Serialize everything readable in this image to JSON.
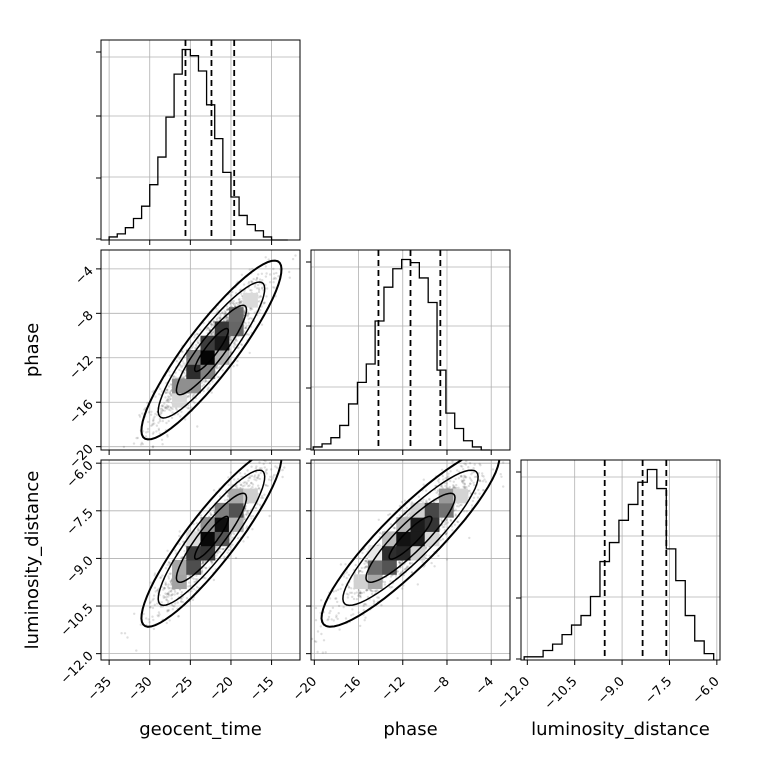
{
  "chart_data": {
    "type": "corner",
    "parameters": [
      "geocent_time",
      "phase",
      "luminosity_distance"
    ],
    "axis_labels": {
      "x": [
        "geocent_time",
        "phase",
        "luminosity_distance"
      ],
      "y": [
        "phase",
        "luminosity_distance"
      ]
    },
    "ranges": {
      "geocent_time": [
        -36.0,
        -11.5
      ],
      "phase": [
        -20.3,
        -2.3
      ],
      "luminosity_distance": [
        -12.2,
        -5.9
      ]
    },
    "ticks": {
      "geocent_time": [
        "-35",
        "-30",
        "-25",
        "-20",
        "-15"
      ],
      "phase": [
        "-20",
        "-16",
        "-12",
        "-8",
        "-4"
      ],
      "luminosity_distance": [
        "-12.0",
        "-10.5",
        "-9.0",
        "-7.5",
        "-6.0"
      ]
    },
    "tick_values": {
      "geocent_time": [
        -35,
        -30,
        -25,
        -20,
        -15
      ],
      "phase": [
        -20,
        -16,
        -12,
        -8,
        -4
      ],
      "luminosity_distance": [
        -12.0,
        -10.5,
        -9.0,
        -7.5,
        -6.0
      ]
    },
    "quantiles": {
      "geocent_time": [
        -25.6,
        -22.4,
        -19.6
      ],
      "phase": [
        -14.2,
        -11.3,
        -8.6
      ],
      "luminosity_distance": [
        -9.55,
        -8.35,
        -7.6
      ]
    },
    "histograms": {
      "geocent_time": {
        "bin_edges": [
          -35,
          -34,
          -33,
          -32,
          -31,
          -30,
          -29,
          -28,
          -27,
          -26,
          -25,
          -24,
          -23,
          -22,
          -21,
          -20,
          -19,
          -18,
          -17,
          -16,
          -15,
          -14,
          -13
        ],
        "counts": [
          1,
          2,
          4,
          7,
          11,
          18,
          27,
          40,
          54,
          62,
          60,
          55,
          44,
          33,
          22,
          14,
          8,
          5,
          3,
          1,
          0,
          0
        ]
      },
      "phase": {
        "bin_edges": [
          -20.1,
          -19.3,
          -18.5,
          -17.7,
          -16.9,
          -16.1,
          -15.3,
          -14.5,
          -13.7,
          -12.9,
          -12.1,
          -11.3,
          -10.5,
          -9.7,
          -8.9,
          -8.1,
          -7.3,
          -6.5,
          -5.7,
          -4.9,
          -4.1
        ],
        "counts": [
          1,
          2,
          4,
          8,
          15,
          22,
          28,
          42,
          53,
          59,
          62,
          61,
          56,
          48,
          26,
          12,
          7,
          3,
          1,
          0
        ]
      },
      "luminosity_distance": {
        "bin_edges": [
          -12.1,
          -11.8,
          -11.5,
          -11.2,
          -10.9,
          -10.6,
          -10.3,
          -10.0,
          -9.7,
          -9.4,
          -9.1,
          -8.8,
          -8.5,
          -8.2,
          -7.9,
          -7.6,
          -7.3,
          -7.0,
          -6.7,
          -6.4,
          -6.1
        ],
        "counts": [
          1,
          1,
          3,
          5,
          8,
          11,
          14,
          20,
          31,
          37,
          44,
          49,
          56,
          60,
          54,
          35,
          25,
          14,
          6,
          2
        ]
      }
    },
    "correlations": {
      "geocent_time__phase": 0.9,
      "geocent_time__luminosity_distance": 0.9,
      "phase__luminosity_distance": 0.9
    },
    "grid": true,
    "colors": {
      "hist_line": "#000000",
      "points": "#000000",
      "contour": "#000000"
    }
  }
}
